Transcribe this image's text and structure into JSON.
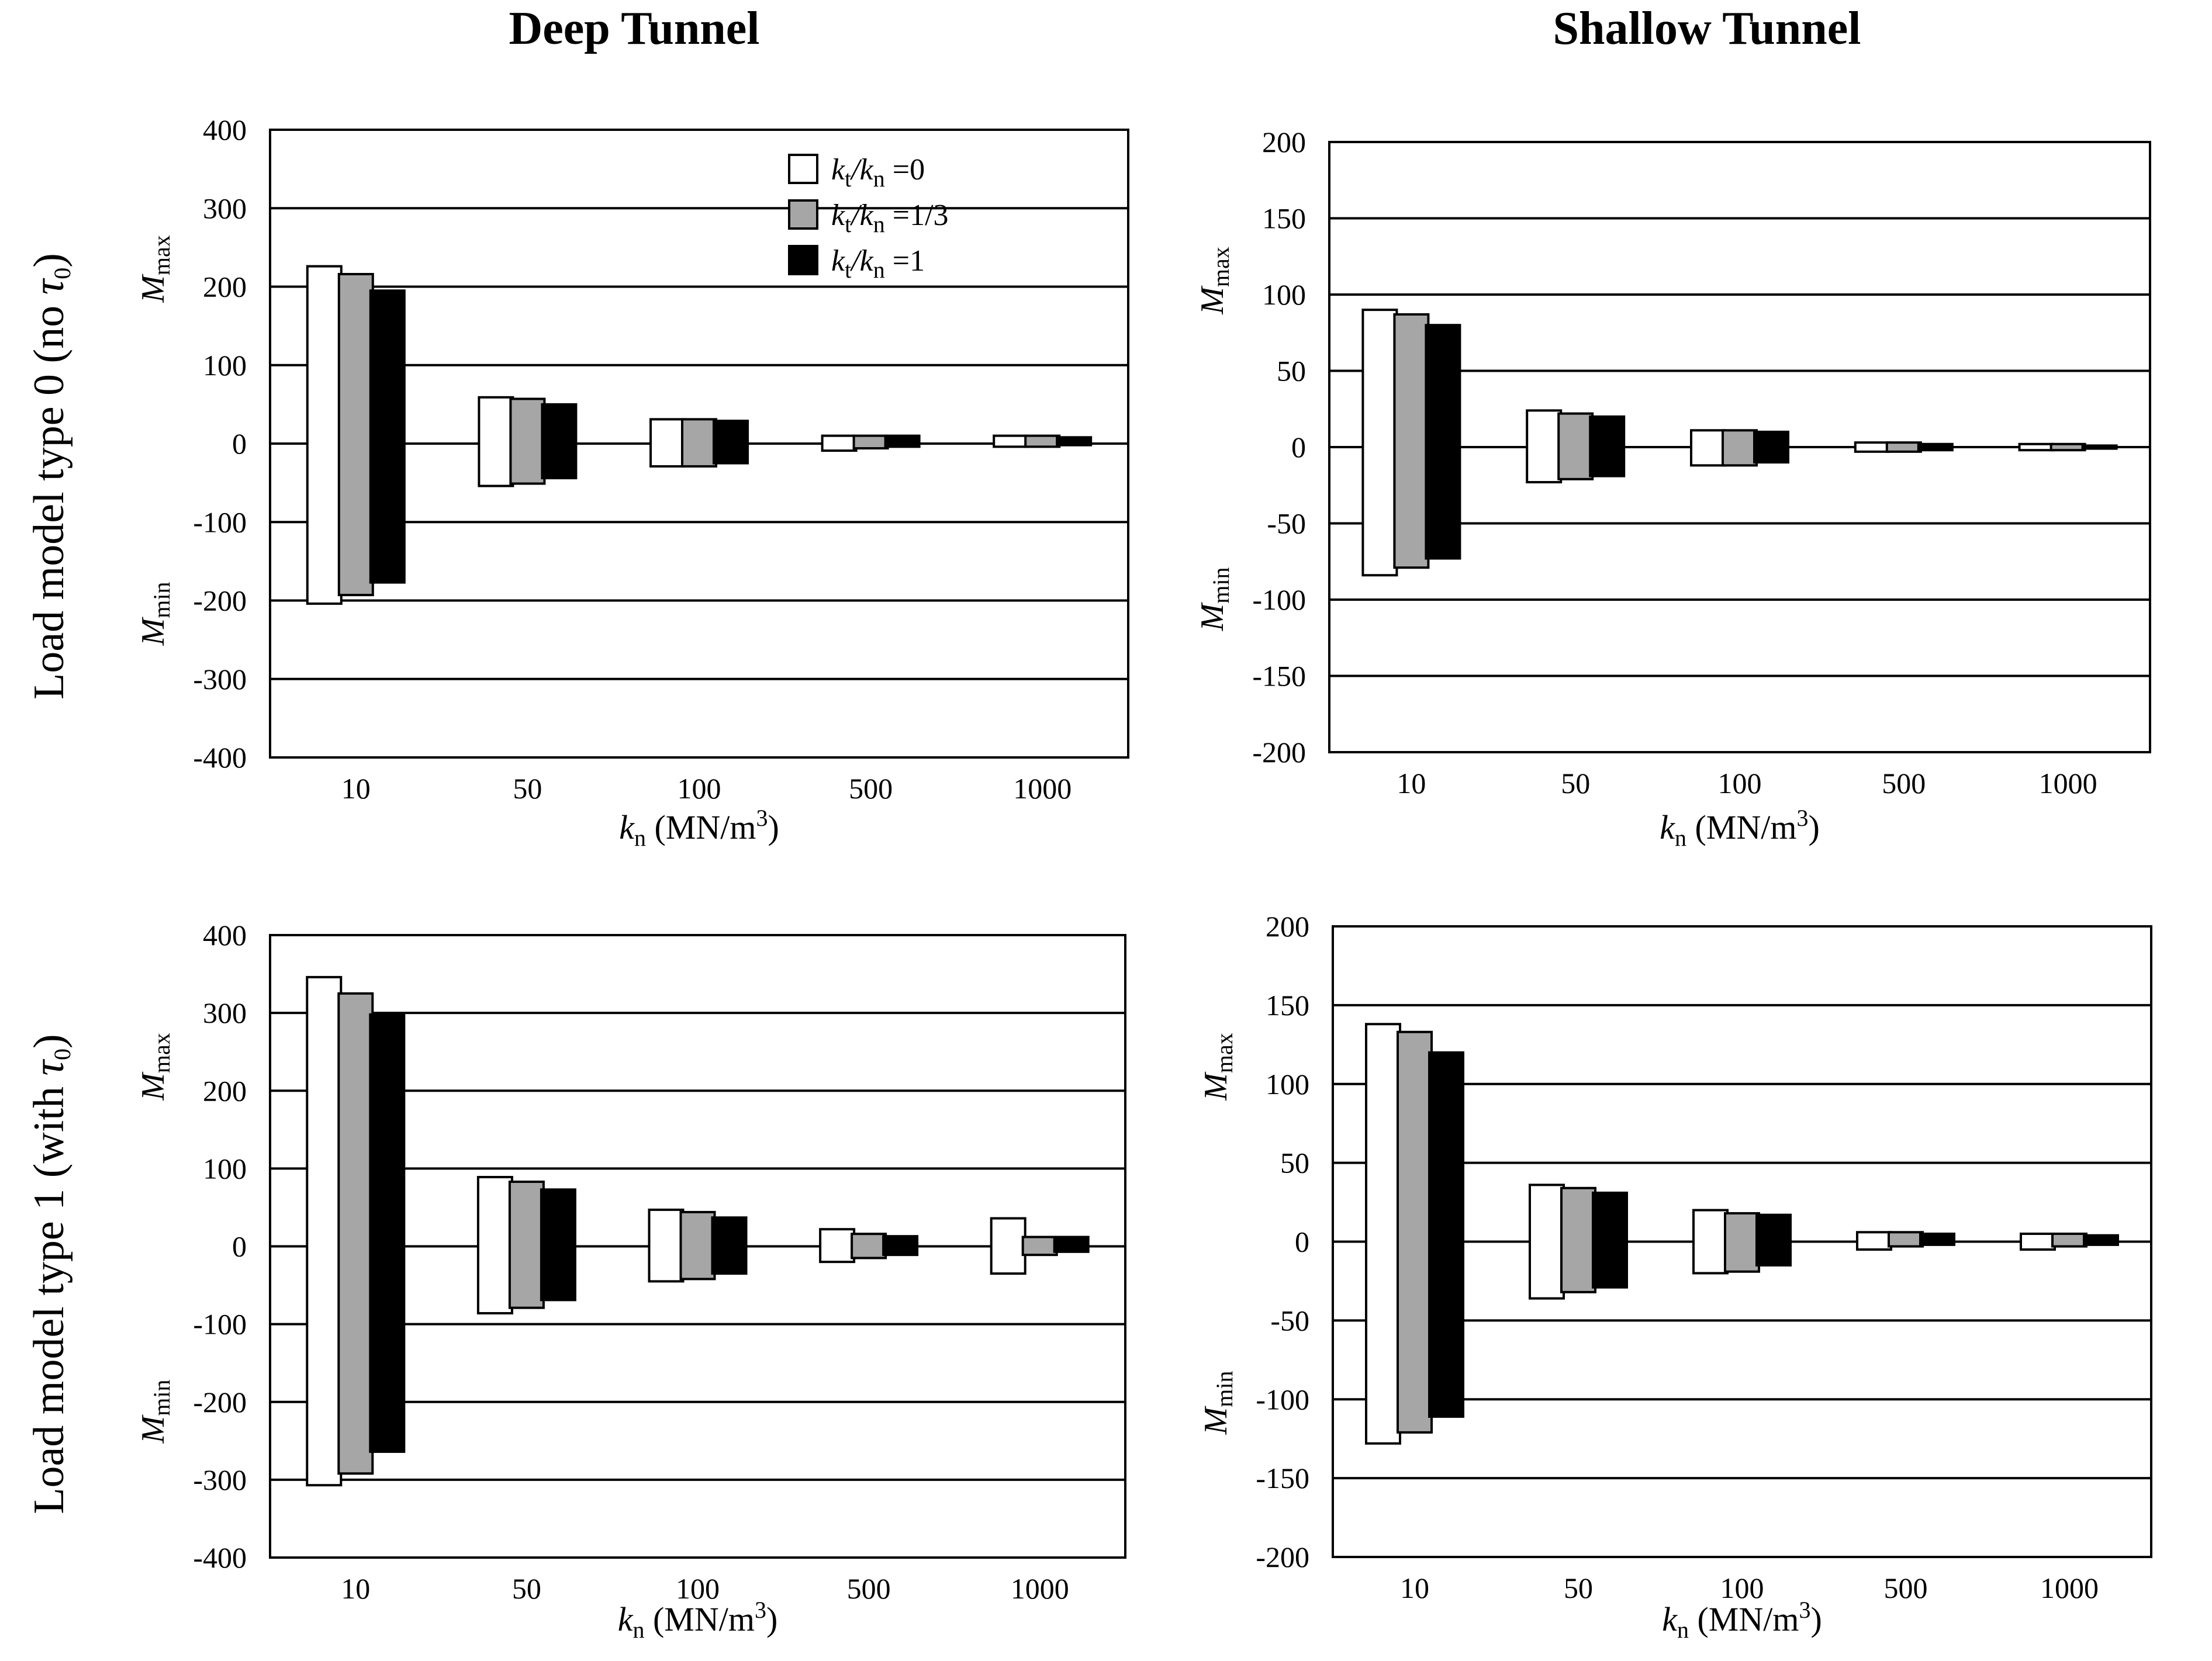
{
  "column_titles": [
    "Deep Tunnel",
    "Shallow Tunnel"
  ],
  "row_titles": [
    {
      "text": "Load model type 0 (no ",
      "symbol": "τ",
      "subscript": "0",
      "suffix": ")"
    },
    {
      "text": "Load model type 1 (with ",
      "symbol": "τ",
      "subscript": "0",
      "suffix": ")"
    }
  ],
  "legend": {
    "items": [
      {
        "name": "kt/kn=0",
        "prefix": "k",
        "sub1": "t",
        "mid": "/k",
        "sub2": "n",
        "value": " =0",
        "color": "#ffffff"
      },
      {
        "name": "kt/kn=1/3",
        "prefix": "k",
        "sub1": "t",
        "mid": "/k",
        "sub2": "n",
        "value": " =1/3",
        "color": "#a6a6a6"
      },
      {
        "name": "kt/kn=1",
        "prefix": "k",
        "sub1": "t",
        "mid": "/k",
        "sub2": "n",
        "value": " =1",
        "color": "#000000"
      }
    ]
  },
  "y_side_labels": {
    "max": {
      "main": "M",
      "sub": "max"
    },
    "min": {
      "main": "M",
      "sub": "min"
    }
  },
  "chart_data": [
    {
      "type": "bar",
      "subtype": "floating-range",
      "id": "deep-type0",
      "column": "Deep Tunnel",
      "row": "Load model type 0 (no τ0)",
      "categories": [
        "10",
        "50",
        "100",
        "500",
        "1000"
      ],
      "xlabel": {
        "main": "k",
        "sub": "n",
        "unit": " (MN/m",
        "sup": "3",
        "close": ")"
      },
      "ylim": [
        -400,
        400
      ],
      "yticks": [
        400,
        300,
        200,
        100,
        0,
        -100,
        -200,
        -300,
        -400
      ],
      "ytick_labels": [
        "400",
        "300",
        "200",
        "100",
        "0",
        "-100",
        "-200",
        "-300",
        "-400"
      ],
      "gridlines": [
        300,
        200,
        100,
        0,
        -100,
        -200,
        -300
      ],
      "series": [
        {
          "name": "kt/kn=0",
          "max": [
            226,
            59,
            31,
            10,
            10
          ],
          "min": [
            -204,
            -54,
            -29,
            -9,
            -4
          ]
        },
        {
          "name": "kt/kn=1/3",
          "max": [
            216,
            57,
            31,
            10,
            10
          ],
          "min": [
            -193,
            -51,
            -29,
            -6,
            -4
          ]
        },
        {
          "name": "kt/kn=1",
          "max": [
            195,
            50,
            29,
            10,
            8
          ],
          "min": [
            -177,
            -44,
            -25,
            -4,
            -2
          ]
        }
      ]
    },
    {
      "type": "bar",
      "subtype": "floating-range",
      "id": "shallow-type0",
      "column": "Shallow Tunnel",
      "row": "Load model type 0 (no τ0)",
      "categories": [
        "10",
        "50",
        "100",
        "500",
        "1000"
      ],
      "xlabel": {
        "main": "k",
        "sub": "n",
        "unit": " (MN/m",
        "sup": "3",
        "close": ")"
      },
      "ylim": [
        -200,
        200
      ],
      "yticks": [
        200,
        150,
        100,
        50,
        0,
        -50,
        -100,
        -150,
        -200
      ],
      "ytick_labels": [
        "200",
        "150",
        "100",
        "50",
        "0",
        "-50",
        "-100",
        "-150",
        "-200"
      ],
      "gridlines": [
        150,
        100,
        50,
        0,
        -50,
        -100,
        -150
      ],
      "series": [
        {
          "name": "kt/kn=0",
          "max": [
            90,
            24,
            11,
            3,
            2
          ],
          "min": [
            -84,
            -23,
            -12,
            -3,
            -2
          ]
        },
        {
          "name": "kt/kn=1/3",
          "max": [
            87,
            22,
            11,
            3,
            2
          ],
          "min": [
            -79,
            -21,
            -12,
            -3,
            -2
          ]
        },
        {
          "name": "kt/kn=1",
          "max": [
            80,
            20,
            10,
            2,
            1
          ],
          "min": [
            -73,
            -19,
            -10,
            -2,
            -1
          ]
        }
      ]
    },
    {
      "type": "bar",
      "subtype": "floating-range",
      "id": "deep-type1",
      "column": "Deep Tunnel",
      "row": "Load model type 1 (with τ0)",
      "categories": [
        "10",
        "50",
        "100",
        "500",
        "1000"
      ],
      "xlabel": {
        "main": "k",
        "sub": "n",
        "unit": " (MN/m",
        "sup": "3",
        "close": ")"
      },
      "ylim": [
        -400,
        400
      ],
      "yticks": [
        400,
        300,
        200,
        100,
        0,
        -100,
        -200,
        -300,
        -400
      ],
      "ytick_labels": [
        "400",
        "300",
        "200",
        "100",
        "0",
        "-100",
        "-200",
        "-300",
        "-400"
      ],
      "gridlines": [
        300,
        200,
        100,
        0,
        -100,
        -200,
        -300
      ],
      "series": [
        {
          "name": "kt/kn=0",
          "max": [
            346,
            89,
            47,
            22,
            36
          ],
          "min": [
            -307,
            -86,
            -45,
            -20,
            -35
          ]
        },
        {
          "name": "kt/kn=1/3",
          "max": [
            325,
            83,
            44,
            16,
            12
          ],
          "min": [
            -292,
            -79,
            -42,
            -15,
            -11
          ]
        },
        {
          "name": "kt/kn=1",
          "max": [
            298,
            73,
            37,
            13,
            12
          ],
          "min": [
            -264,
            -69,
            -35,
            -11,
            -7
          ]
        }
      ]
    },
    {
      "type": "bar",
      "subtype": "floating-range",
      "id": "shallow-type1",
      "column": "Shallow Tunnel",
      "row": "Load model type 1 (with τ0)",
      "categories": [
        "10",
        "50",
        "100",
        "500",
        "1000"
      ],
      "xlabel": {
        "main": "k",
        "sub": "n",
        "unit": " (MN/m",
        "sup": "3",
        "close": ")"
      },
      "ylim": [
        -200,
        200
      ],
      "yticks": [
        200,
        150,
        100,
        50,
        0,
        -50,
        -100,
        -150,
        -200
      ],
      "ytick_labels": [
        "200",
        "150",
        "100",
        "50",
        "0",
        "-50",
        "-100",
        "-150",
        "-200"
      ],
      "gridlines": [
        150,
        100,
        50,
        0,
        -50,
        -100,
        -150
      ],
      "series": [
        {
          "name": "kt/kn=0",
          "max": [
            138,
            36,
            20,
            6,
            5
          ],
          "min": [
            -128,
            -36,
            -20,
            -5,
            -5
          ]
        },
        {
          "name": "kt/kn=1/3",
          "max": [
            133,
            34,
            18,
            6,
            5
          ],
          "min": [
            -121,
            -32,
            -19,
            -3,
            -3
          ]
        },
        {
          "name": "kt/kn=1",
          "max": [
            120,
            31,
            17,
            5,
            4
          ],
          "min": [
            -111,
            -29,
            -15,
            -2,
            -2
          ]
        }
      ]
    }
  ]
}
